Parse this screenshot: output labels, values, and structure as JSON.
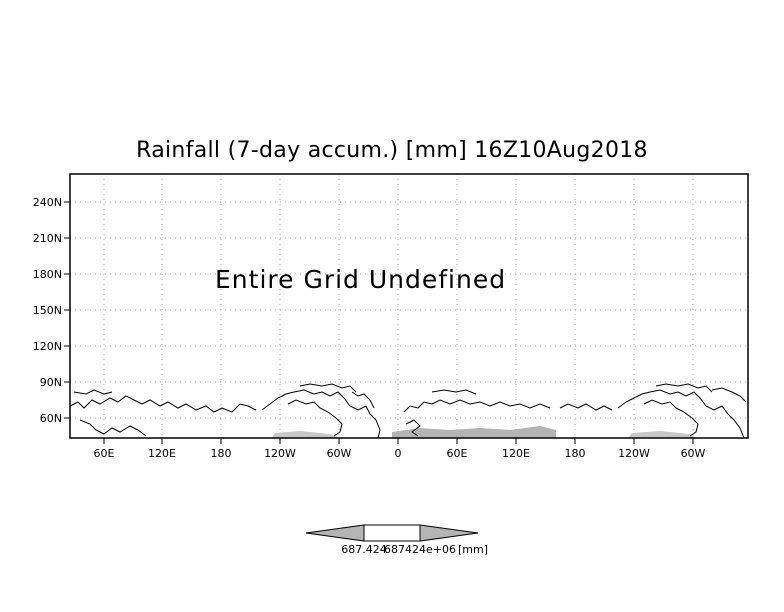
{
  "title": "Rainfall (7-day accum.) [mm] 16Z10Aug2018",
  "message": "Entire Grid Undefined",
  "y_axis_labels": [
    "240N",
    "210N",
    "180N",
    "150N",
    "120N",
    "90N",
    "60N"
  ],
  "x_axis_labels": [
    "60E",
    "120E",
    "180",
    "120W",
    "60W",
    "0",
    "60E",
    "120E",
    "180",
    "120W",
    "60W"
  ],
  "colorbar": {
    "value_labels": [
      "687.424",
      "687424e+06"
    ],
    "unit_label": "[mm]"
  },
  "colors": {
    "land_fill": "#ffffff",
    "outline": "#000000",
    "gridline": "#aaaaaa",
    "shading_gray": "#b4b4b4"
  }
}
